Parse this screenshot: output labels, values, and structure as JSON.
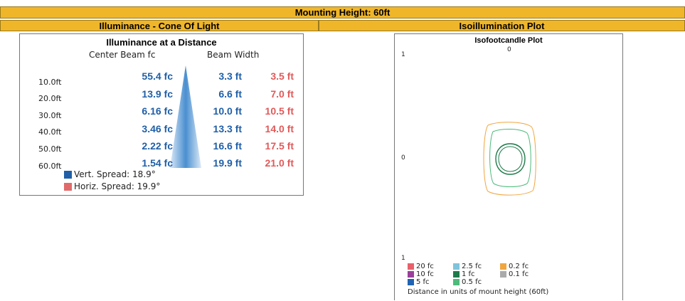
{
  "header": {
    "title": "Mounting Height: 60ft",
    "left_section": "Illuminance - Cone Of Light",
    "right_section": "Isoillumination Plot"
  },
  "cone": {
    "title": "Illuminance at a Distance",
    "col_center": "Center Beam fc",
    "col_width": "Beam Width",
    "rows": [
      {
        "distance": "10.0ft",
        "fc": "55.4 fc",
        "vert": "3.3 ft",
        "horiz": "3.5 ft"
      },
      {
        "distance": "20.0ft",
        "fc": "13.9 fc",
        "vert": "6.6 ft",
        "horiz": "7.0 ft"
      },
      {
        "distance": "30.0ft",
        "fc": "6.16 fc",
        "vert": "10.0 ft",
        "horiz": "10.5 ft"
      },
      {
        "distance": "40.0ft",
        "fc": "3.46 fc",
        "vert": "13.3 ft",
        "horiz": "14.0 ft"
      },
      {
        "distance": "50.0ft",
        "fc": "2.22 fc",
        "vert": "16.6 ft",
        "horiz": "17.5 ft"
      },
      {
        "distance": "60.0ft",
        "fc": "1.54 fc",
        "vert": "19.9 ft",
        "horiz": "21.0 ft"
      }
    ],
    "legend": [
      {
        "label": "Vert.  Spread: 18.9°",
        "color": "#1f5fa8"
      },
      {
        "label": "Horiz. Spread: 19.9°",
        "color": "#e06a6a"
      }
    ]
  },
  "iso": {
    "title": "Isofootcandle Plot",
    "tick_top": "0",
    "tick_left_top": "1",
    "tick_left_mid": "0",
    "tick_left_bottom": "1",
    "legend": [
      {
        "label": "20 fc",
        "color": "#e8616a"
      },
      {
        "label": "10 fc",
        "color": "#9b3f9b"
      },
      {
        "label": "5 fc",
        "color": "#1f63b4"
      },
      {
        "label": "2.5 fc",
        "color": "#7fc4dc"
      },
      {
        "label": "1 fc",
        "color": "#1e7a4a"
      },
      {
        "label": "0.5 fc",
        "color": "#4dbb7a"
      },
      {
        "label": "0.2 fc",
        "color": "#f0a640"
      },
      {
        "label": "0.1 fc",
        "color": "#aaaaaa"
      }
    ],
    "note": "Distance in units of mount height (60ft)"
  }
}
